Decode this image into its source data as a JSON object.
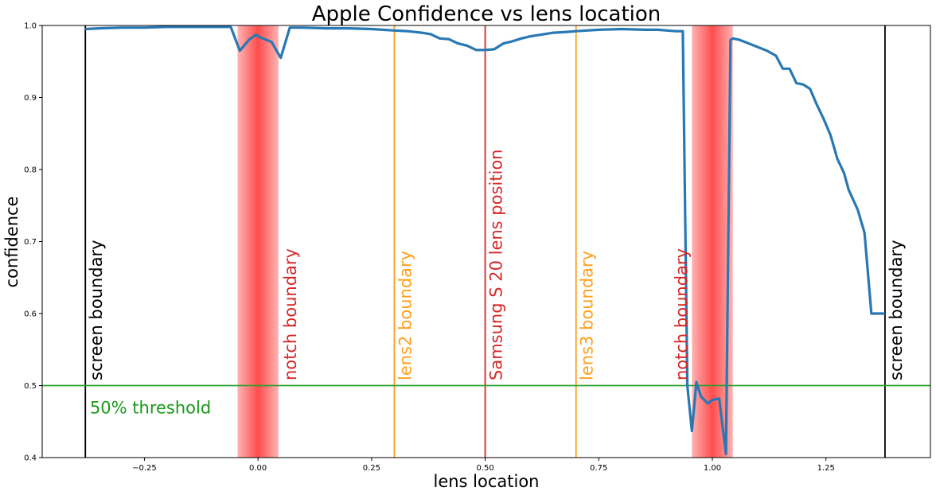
{
  "chart_data": {
    "type": "line",
    "title": "Apple Confidence vs lens location",
    "xlabel": "lens location",
    "ylabel": "confidence",
    "xlim": [
      -0.475,
      1.48
    ],
    "ylim": [
      0.4,
      1.0
    ],
    "xticks": [
      -0.25,
      0.0,
      0.25,
      0.5,
      0.75,
      1.0,
      1.25
    ],
    "xtick_labels": [
      "−0.25",
      "0.00",
      "0.25",
      "0.50",
      "0.75",
      "1.00",
      "1.25"
    ],
    "yticks": [
      0.4,
      0.5,
      0.6,
      0.7,
      0.8,
      0.9,
      1.0
    ],
    "ytick_labels": [
      "0.4",
      "0.5",
      "0.6",
      "0.7",
      "0.8",
      "0.9",
      "1.0"
    ],
    "grid": false,
    "line_color": "#2878b4",
    "series": [
      {
        "x": [
          -0.38,
          -0.35,
          -0.3,
          -0.25,
          -0.2,
          -0.15,
          -0.1,
          -0.06,
          -0.04,
          -0.02,
          -0.005,
          0.01,
          0.03,
          0.05,
          0.07,
          0.1,
          0.15,
          0.2,
          0.25,
          0.3,
          0.33,
          0.36,
          0.38,
          0.4,
          0.42,
          0.44,
          0.46,
          0.48,
          0.5,
          0.52,
          0.54,
          0.56,
          0.58,
          0.6,
          0.63,
          0.65,
          0.68,
          0.7,
          0.75,
          0.8,
          0.85,
          0.88,
          0.9,
          0.92,
          0.935,
          0.945,
          0.955,
          0.965,
          0.975,
          0.99,
          1.0,
          1.015,
          1.03,
          1.04,
          1.045,
          1.06,
          1.08,
          1.1,
          1.12,
          1.14,
          1.155,
          1.17,
          1.185,
          1.2,
          1.215,
          1.23,
          1.245,
          1.26,
          1.275,
          1.29,
          1.3,
          1.32,
          1.335,
          1.35,
          1.365,
          1.38
        ],
        "y": [
          0.995,
          0.996,
          0.997,
          0.997,
          0.998,
          0.998,
          0.998,
          0.998,
          0.965,
          0.98,
          0.987,
          0.982,
          0.977,
          0.955,
          0.997,
          0.997,
          0.996,
          0.996,
          0.995,
          0.993,
          0.992,
          0.99,
          0.988,
          0.982,
          0.981,
          0.975,
          0.972,
          0.966,
          0.966,
          0.967,
          0.975,
          0.978,
          0.982,
          0.985,
          0.988,
          0.99,
          0.991,
          0.992,
          0.994,
          0.995,
          0.994,
          0.994,
          0.993,
          0.992,
          0.992,
          0.5,
          0.437,
          0.505,
          0.485,
          0.475,
          0.48,
          0.482,
          0.405,
          0.98,
          0.982,
          0.98,
          0.975,
          0.97,
          0.965,
          0.958,
          0.94,
          0.94,
          0.92,
          0.918,
          0.912,
          0.89,
          0.87,
          0.848,
          0.815,
          0.795,
          0.772,
          0.744,
          0.712,
          0.6,
          0.6,
          0.6
        ]
      }
    ],
    "shaded_regions": [
      {
        "x0": -0.045,
        "x1": 0.045,
        "color": "#ff4d4d"
      },
      {
        "x0": 0.955,
        "x1": 1.045,
        "color": "#ff4d4d"
      }
    ],
    "vertical_lines": [
      {
        "x": -0.38,
        "label": "screen boundary",
        "color": "#000000",
        "label_side": "right"
      },
      {
        "x": 0.047,
        "label": "notch boundary",
        "color": "#d62728",
        "line": false,
        "label_side": "right"
      },
      {
        "x": 0.3,
        "label": "lens2 boundary",
        "color": "#ff9f1c",
        "label_side": "right"
      },
      {
        "x": 0.5,
        "label": "Samsung S 20 lens position",
        "color": "#d62728",
        "label_side": "right"
      },
      {
        "x": 0.7,
        "label": "lens3 boundary",
        "color": "#ff9f1c",
        "label_side": "right"
      },
      {
        "x": 0.955,
        "label": "notch boundary",
        "color": "#d62728",
        "line": false,
        "label_side": "left"
      },
      {
        "x": 1.38,
        "label": "screen boundary",
        "color": "#000000",
        "label_side": "right"
      }
    ],
    "horizontal_lines": [
      {
        "y": 0.5,
        "label": "50% threshold",
        "color": "#2ca02c",
        "label_color": "#1a9a1a",
        "label_x": -0.37
      }
    ]
  }
}
